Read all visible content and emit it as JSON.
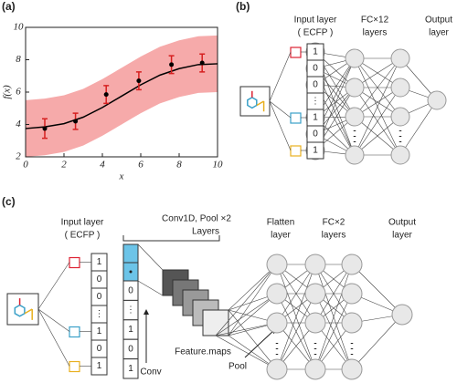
{
  "chart_data": {
    "type": "line",
    "panel_label": "(a)",
    "xlabel": "x",
    "ylabel": "f(x)",
    "xlim": [
      0,
      10
    ],
    "ylim": [
      2,
      10
    ],
    "xticks": [
      0,
      2,
      4,
      6,
      8,
      10
    ],
    "yticks": [
      2,
      4,
      6,
      8,
      10
    ],
    "x": [
      0,
      1,
      2,
      3,
      4,
      5,
      6,
      7,
      8,
      9,
      10
    ],
    "series": [
      {
        "color": "#000000",
        "values": [
          3.75,
          3.85,
          4.05,
          4.45,
          5.05,
          5.75,
          6.45,
          7.05,
          7.45,
          7.7,
          7.75
        ]
      }
    ],
    "band": {
      "color": "#f6aaaa",
      "lower": [
        2.0,
        2.1,
        2.3,
        2.7,
        3.3,
        4.0,
        4.7,
        5.3,
        5.7,
        5.95,
        6.0
      ],
      "upper": [
        5.5,
        5.6,
        5.8,
        6.2,
        6.8,
        7.5,
        8.2,
        8.8,
        9.2,
        9.45,
        9.5
      ]
    },
    "observations": {
      "color": "#d62020",
      "x": [
        1,
        2.6,
        4.2,
        5.9,
        7.6,
        9.2
      ],
      "values": [
        3.75,
        4.2,
        5.85,
        6.7,
        7.7,
        7.8
      ],
      "errors": [
        0.6,
        0.5,
        0.55,
        0.55,
        0.55,
        0.55
      ]
    }
  },
  "panel_b": {
    "panel_label": "(b)",
    "input_title": "Input layer",
    "input_subtitle": "( ECFP )",
    "hidden_title": "FC×12",
    "hidden_subtitle": "layers",
    "output_title": "Output",
    "output_subtitle": "layer",
    "vector": [
      "1",
      "0",
      "0",
      "⋮",
      "1",
      "0",
      "1"
    ]
  },
  "panel_c": {
    "panel_label": "(c)",
    "input_title": "Input  layer",
    "input_subtitle": "( ECFP )",
    "vector": [
      "1",
      "0",
      "0",
      "⋮",
      "1",
      "0",
      "1"
    ],
    "conv_vector": [
      "0",
      "⋮",
      "1",
      "0",
      "1"
    ],
    "conv_title": "Conv1D, Pool  ×2",
    "conv_subtitle": "Layers",
    "feature_maps": "Feature.maps",
    "conv_label": "Conv",
    "pool_label": "Pool",
    "flatten_title": "Flatten",
    "flatten_subtitle": "layer",
    "fc_title": "FC×2",
    "fc_subtitle": "layers",
    "output_title": "Output",
    "output_subtitle": "layer"
  }
}
